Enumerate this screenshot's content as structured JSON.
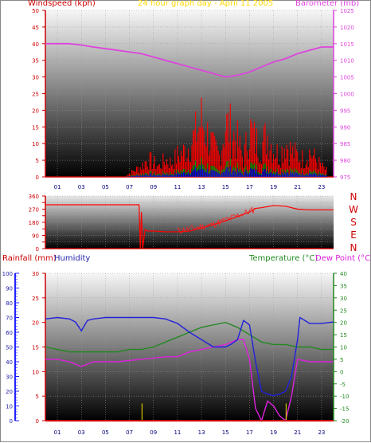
{
  "top_chart": {
    "title": "24 hour graph day - April 11 2005",
    "left_label": "Windspeed (kph)",
    "right_label": "Barometer (mb)"
  },
  "dir_chart": {
    "compass": [
      "N",
      "W",
      "S",
      "E",
      "N"
    ]
  },
  "bottom_chart": {
    "label_rain": "Rainfall (mm)",
    "label_hum": "Humidity",
    "label_temp": "Temperature (°C)",
    "label_dew": "Dew Point (°C)"
  },
  "hour_ticks": [
    "01",
    "03",
    "05",
    "07",
    "09",
    "11",
    "13",
    "15",
    "17",
    "19",
    "21",
    "23"
  ],
  "colors": {
    "wind": "#ff0000",
    "gust_green": "#00a000",
    "gust_blue": "#0000ff",
    "barometer": "#dd44dd",
    "humidity": "#2222dd",
    "temperature": "#228822",
    "dewpoint": "#dd22dd",
    "rain": "#cc0000",
    "title": "#ffd700"
  },
  "chart_data": [
    {
      "type": "line",
      "title": "24 hour graph day - April 11 2005",
      "xlabel": "",
      "ylabel": "Windspeed (kph)",
      "y2label": "Barometer (mb)",
      "ylim": [
        0,
        50
      ],
      "y2lim": [
        975,
        1025
      ],
      "y_ticks": [
        0,
        5,
        10,
        15,
        20,
        25,
        30,
        35,
        40,
        45,
        50
      ],
      "y2_ticks": [
        975,
        980,
        985,
        990,
        995,
        1000,
        1005,
        1010,
        1015,
        1020,
        1025
      ],
      "x_ticks": [
        "01",
        "03",
        "05",
        "07",
        "09",
        "11",
        "13",
        "15",
        "17",
        "19",
        "21",
        "23"
      ],
      "series": [
        {
          "name": "Barometer (mb)",
          "axis": "right",
          "x": [
            0,
            1,
            2,
            3,
            4,
            5,
            6,
            7,
            8,
            9,
            10,
            11,
            12,
            13,
            14,
            15,
            16,
            17,
            18,
            19,
            20,
            21,
            22,
            23,
            24
          ],
          "values": [
            1015,
            1015,
            1015,
            1014.6,
            1014,
            1013.5,
            1013,
            1012.5,
            1012,
            1011,
            1010,
            1009,
            1008,
            1007,
            1006,
            1005,
            1005.5,
            1006.5,
            1008,
            1009.5,
            1010.5,
            1012,
            1013,
            1014,
            1014
          ]
        },
        {
          "name": "Windspeed (kph)",
          "axis": "left",
          "x": [
            0,
            4,
            6.5,
            7.5,
            8,
            8.5,
            9,
            9.5,
            10,
            10.5,
            11,
            11.5,
            12,
            12.5,
            13,
            13.5,
            14,
            14.5,
            15,
            15.5,
            16,
            16.5,
            17,
            17.5,
            18,
            18.5,
            19,
            19.5,
            20,
            20.5,
            21,
            21.5,
            22,
            22.5,
            23,
            24
          ],
          "values": [
            0,
            0,
            0,
            2,
            3,
            5,
            4,
            3,
            5,
            4,
            6,
            7,
            9,
            12,
            16,
            12,
            8,
            6,
            15,
            13,
            10,
            5,
            14,
            10,
            9,
            12,
            8,
            6,
            10,
            7,
            6,
            5,
            7,
            5,
            3,
            0
          ]
        }
      ]
    },
    {
      "type": "line",
      "title": "",
      "ylabel": "",
      "ylim": [
        0,
        360
      ],
      "y_ticks": [
        0,
        45,
        90,
        135,
        180,
        225,
        270,
        315,
        360
      ],
      "y_tick_labels": [
        0,
        90,
        180,
        270,
        360
      ],
      "x_ticks": [
        "01",
        "03",
        "05",
        "07",
        "09",
        "11",
        "13",
        "15",
        "17",
        "19",
        "21",
        "23"
      ],
      "series": [
        {
          "name": "",
          "x": [
            0,
            7.8,
            7.9,
            8.0,
            8.1,
            8.3,
            8.5,
            9,
            10,
            11,
            12,
            13,
            14,
            15,
            16,
            17,
            17.5,
            18,
            19,
            20,
            21,
            22,
            24
          ],
          "values": [
            300,
            300,
            0,
            250,
            0,
            130,
            120,
            120,
            115,
            115,
            120,
            140,
            165,
            190,
            220,
            250,
            275,
            280,
            295,
            290,
            270,
            265,
            265
          ]
        }
      ]
    },
    {
      "type": "line",
      "title": "",
      "xlabel": "",
      "ylabel": "Rainfall (mm) / Humidity",
      "y2label": "Temperature (°C) / Dew Point (°C)",
      "ylim": [
        0,
        30
      ],
      "humidity_lim": [
        0,
        100
      ],
      "y2lim": [
        -20,
        40
      ],
      "y_ticks": [
        0,
        5,
        10,
        15,
        20,
        25,
        30
      ],
      "humidity_ticks": [
        0,
        10,
        20,
        30,
        40,
        50,
        60,
        70,
        80,
        90,
        100
      ],
      "y2_ticks": [
        -20,
        -15,
        -10,
        -5,
        0,
        5,
        10,
        15,
        20,
        25,
        30,
        35,
        40
      ],
      "x_ticks": [
        "01",
        "03",
        "05",
        "07",
        "09",
        "11",
        "13",
        "15",
        "17",
        "19",
        "21",
        "23"
      ],
      "series": [
        {
          "name": "Humidity",
          "axis": "humidity",
          "x": [
            0,
            1,
            2,
            2.5,
            3,
            3.5,
            4,
            5,
            6,
            7,
            8,
            9,
            10,
            11,
            12,
            13,
            14,
            15,
            15.5,
            16,
            16.5,
            17,
            17.5,
            18,
            18.5,
            19,
            19.5,
            20,
            20.5,
            21,
            21.2,
            22,
            23,
            24
          ],
          "values": [
            69,
            70,
            69,
            67,
            61,
            68,
            69,
            70,
            70,
            70,
            70,
            70,
            69,
            66,
            60,
            55,
            50,
            50,
            52,
            55,
            68,
            65,
            40,
            20,
            18,
            17,
            18,
            20,
            30,
            55,
            70,
            66,
            66,
            67
          ]
        },
        {
          "name": "Temperature (°C)",
          "axis": "right",
          "x": [
            0,
            1,
            2,
            3,
            4,
            5,
            6,
            7,
            8,
            9,
            10,
            11,
            12,
            13,
            14,
            15,
            16,
            17,
            18,
            19,
            20,
            21,
            22,
            23,
            24
          ],
          "values": [
            10,
            9,
            8,
            8,
            8,
            8,
            8,
            9,
            9,
            10,
            12,
            14,
            16,
            18,
            19,
            20,
            18,
            15,
            12,
            11,
            11,
            10,
            10,
            9,
            9
          ]
        },
        {
          "name": "Dew Point (°C)",
          "axis": "right",
          "x": [
            0,
            1,
            2,
            2.5,
            3,
            3.5,
            4,
            6,
            8,
            10,
            11,
            12,
            13,
            14,
            15,
            16,
            16.5,
            17,
            17.5,
            18,
            18.5,
            19,
            19.5,
            20,
            20.5,
            21,
            22,
            23,
            24
          ],
          "values": [
            5,
            5,
            4,
            3,
            2,
            3,
            4,
            4,
            5,
            6,
            6,
            8,
            9,
            10,
            11,
            13,
            13,
            5,
            -15,
            -20,
            -12,
            -14,
            -18,
            -20,
            -10,
            5,
            4,
            4,
            4
          ]
        },
        {
          "name": "Rainfall (mm)",
          "axis": "left",
          "x": [
            0,
            8,
            8.05,
            8.1,
            20,
            20.05,
            20.1,
            24
          ],
          "values": [
            0,
            0,
            1,
            0,
            0,
            1,
            0,
            0
          ]
        }
      ]
    }
  ]
}
